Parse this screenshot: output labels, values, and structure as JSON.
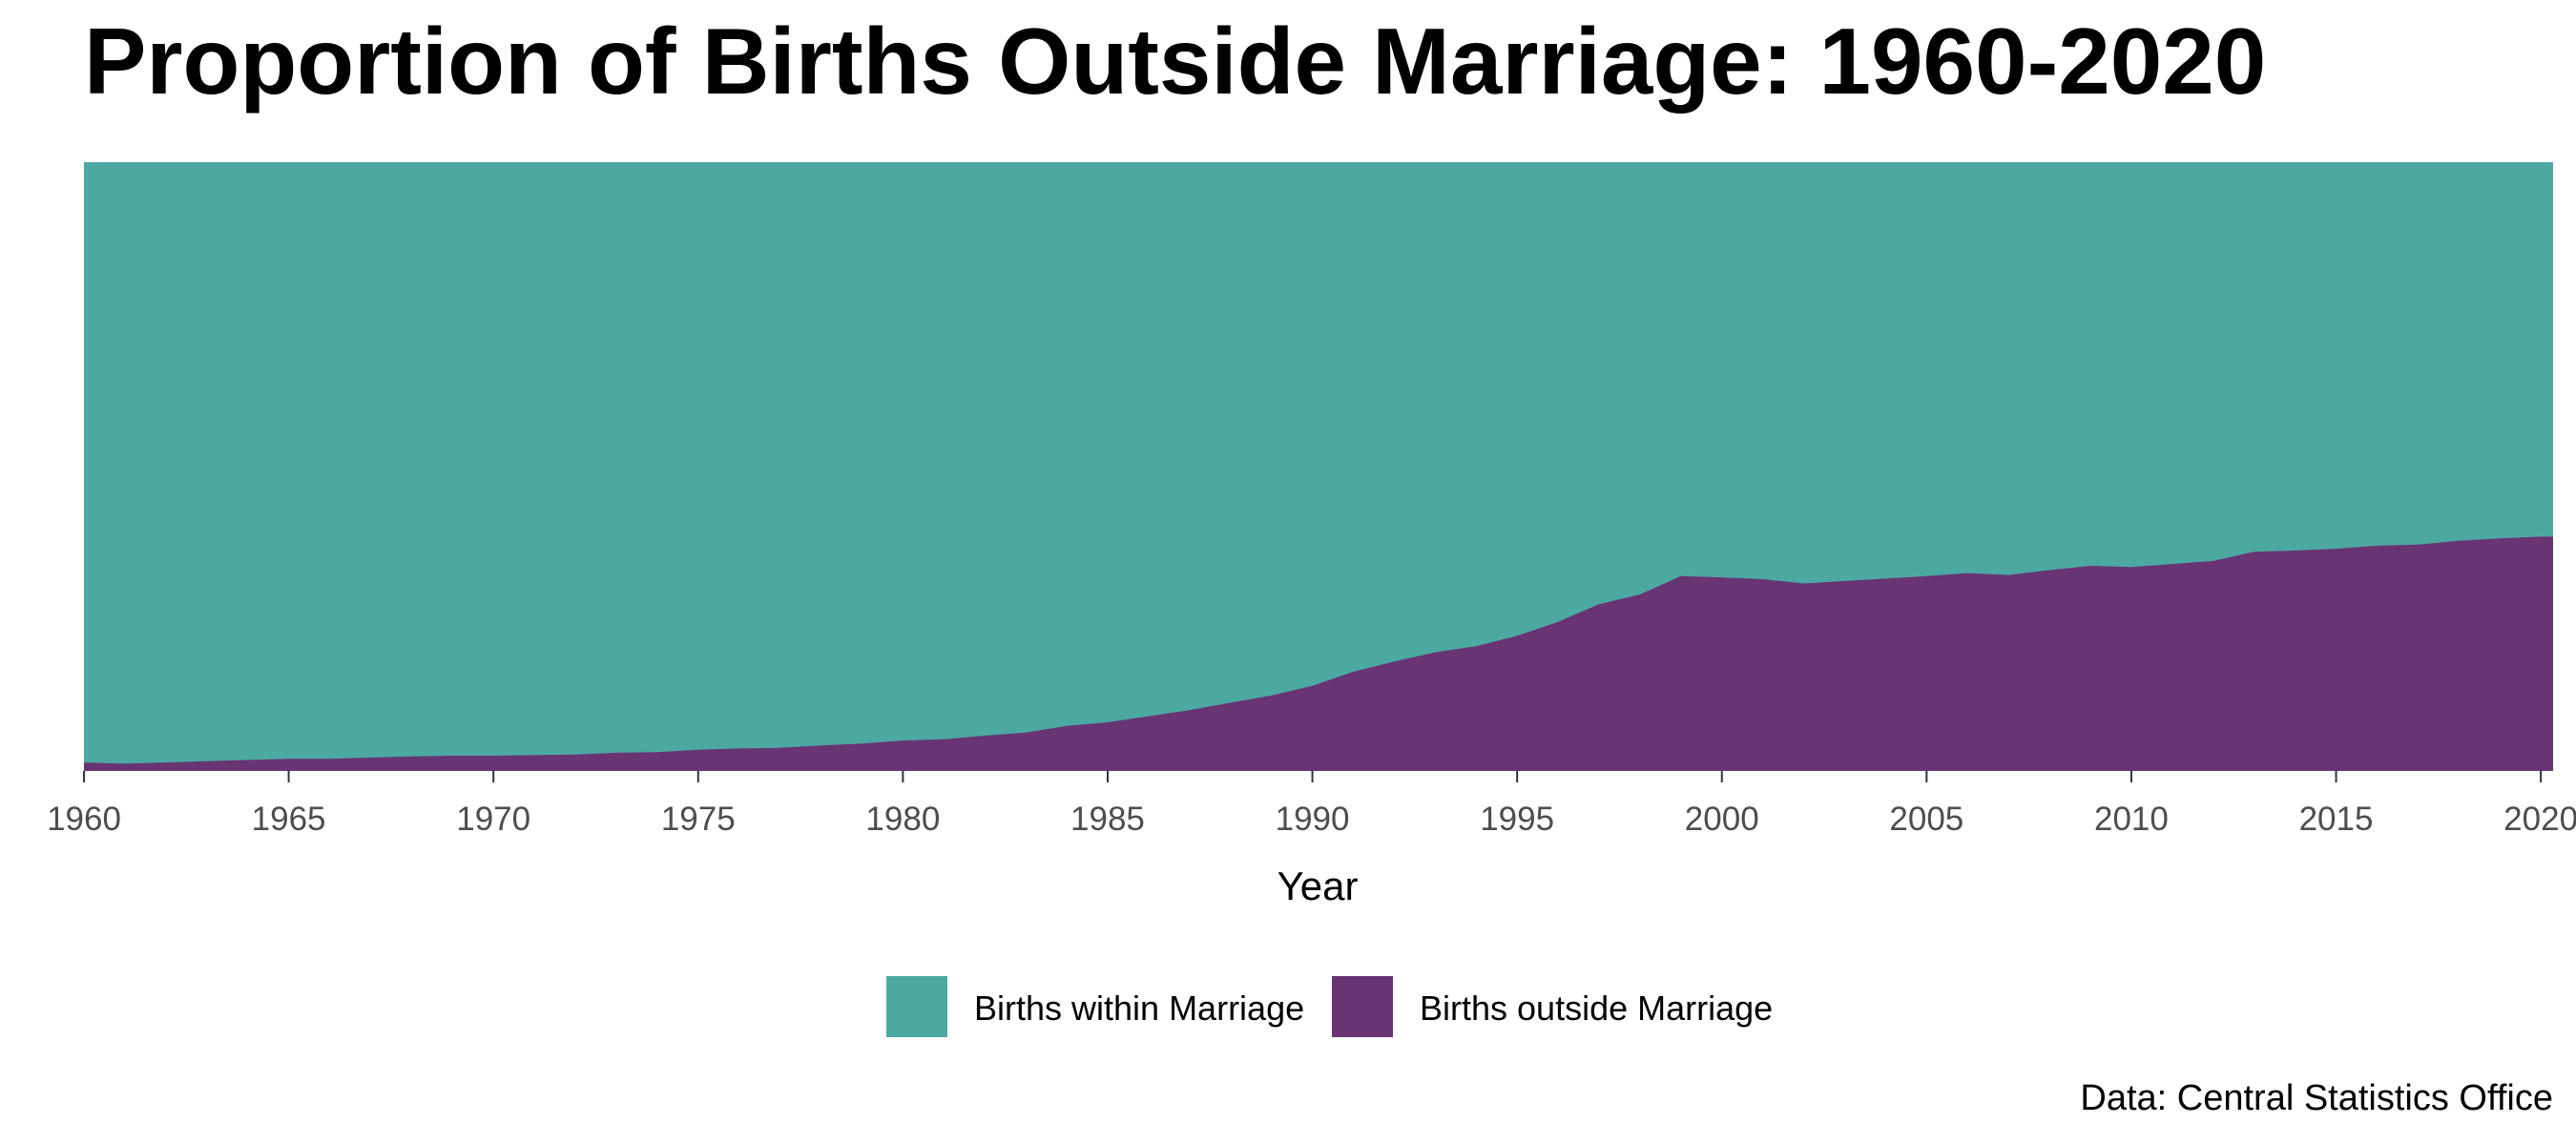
{
  "chart_data": {
    "type": "area",
    "title": "Proportion of Births Outside Marriage: 1960-2020",
    "xlabel": "Year",
    "ylabel": "",
    "caption": "Data: Central Statistics Office",
    "xlim": [
      1960,
      2020.3
    ],
    "ylim": [
      0,
      1
    ],
    "x_ticks": [
      1960,
      1965,
      1970,
      1975,
      1980,
      1985,
      1990,
      1995,
      2000,
      2005,
      2010,
      2015,
      2020
    ],
    "grid": false,
    "stacked": true,
    "normalized": true,
    "legend_position": "bottom",
    "colors": {
      "within": "#4ba9a2",
      "outside": "#683473"
    },
    "series": [
      {
        "name": "Births within Marriage",
        "color": "#4ba9a2",
        "role": "remainder"
      },
      {
        "name": "Births outside Marriage",
        "color": "#683473"
      }
    ],
    "x": [
      1960,
      1961,
      1962,
      1963,
      1964,
      1965,
      1966,
      1967,
      1968,
      1969,
      1970,
      1971,
      1972,
      1973,
      1974,
      1975,
      1976,
      1977,
      1978,
      1979,
      1980,
      1981,
      1982,
      1983,
      1984,
      1985,
      1986,
      1987,
      1988,
      1989,
      1990,
      1991,
      1992,
      1993,
      1994,
      1995,
      1996,
      1997,
      1998,
      1999,
      2000,
      2001,
      2002,
      2003,
      2004,
      2005,
      2006,
      2007,
      2008,
      2009,
      2010,
      2011,
      2012,
      2013,
      2014,
      2015,
      2016,
      2017,
      2018,
      2019,
      2020
    ],
    "outside_share": [
      0.014,
      0.012,
      0.014,
      0.016,
      0.018,
      0.02,
      0.02,
      0.022,
      0.024,
      0.025,
      0.025,
      0.026,
      0.027,
      0.03,
      0.031,
      0.035,
      0.037,
      0.038,
      0.042,
      0.045,
      0.05,
      0.052,
      0.058,
      0.063,
      0.074,
      0.08,
      0.09,
      0.1,
      0.112,
      0.124,
      0.14,
      0.163,
      0.18,
      0.195,
      0.205,
      0.222,
      0.245,
      0.274,
      0.29,
      0.32,
      0.318,
      0.315,
      0.308,
      0.312,
      0.316,
      0.32,
      0.325,
      0.322,
      0.33,
      0.337,
      0.335,
      0.34,
      0.345,
      0.36,
      0.362,
      0.365,
      0.37,
      0.372,
      0.378,
      0.382,
      0.385
    ]
  }
}
